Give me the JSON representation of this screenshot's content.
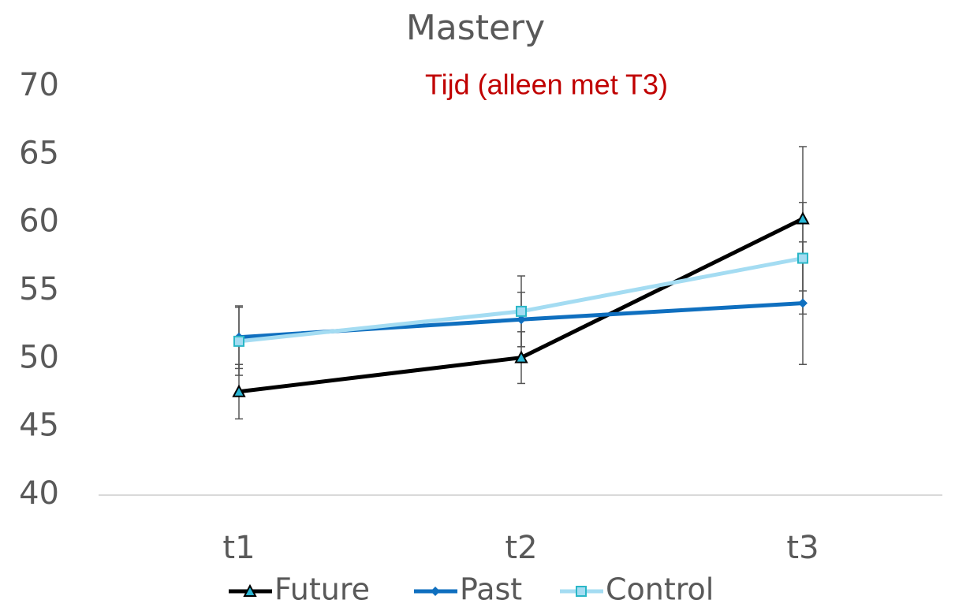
{
  "chart_data": {
    "type": "line",
    "title": "Mastery",
    "subtitle": "Tijd (alleen met T3)",
    "categories": [
      "t1",
      "t2",
      "t3"
    ],
    "series": [
      {
        "name": "Future",
        "color": "#000000",
        "marker": "triangle",
        "marker_fill": "#2ab7d6",
        "values": [
          47.6,
          50.1,
          60.3
        ],
        "errors": [
          2.0,
          1.9,
          5.3
        ]
      },
      {
        "name": "Past",
        "color": "#0f6fbf",
        "marker": "diamond",
        "marker_fill": "#0f6fbf",
        "values": [
          51.6,
          52.9,
          54.1
        ],
        "errors": [
          2.3,
          2.0,
          4.5
        ]
      },
      {
        "name": "Control",
        "color": "#a4dcf2",
        "marker": "square",
        "marker_fill": "#a4dcf2",
        "values": [
          51.3,
          53.5,
          57.4
        ],
        "errors": [
          2.5,
          2.6,
          4.1
        ]
      }
    ],
    "ylim": [
      40,
      70
    ],
    "yticks": [
      40,
      45,
      50,
      55,
      60,
      65,
      70
    ],
    "grid": false,
    "legend": "bottom"
  }
}
